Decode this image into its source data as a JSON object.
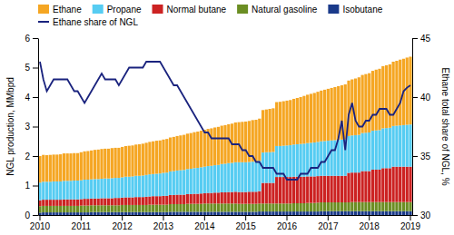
{
  "chart_data": {
    "type": "bar",
    "stacked": true,
    "ylabel": "NGL production, MMbpd",
    "y2label": "Ethane total share of NGL, %",
    "categories": [
      "2010",
      null,
      null,
      null,
      null,
      null,
      null,
      null,
      null,
      null,
      null,
      null,
      "2011",
      null,
      null,
      null,
      null,
      null,
      null,
      null,
      null,
      null,
      null,
      null,
      "2012",
      null,
      null,
      null,
      null,
      null,
      null,
      null,
      null,
      null,
      null,
      null,
      "2013",
      null,
      null,
      null,
      null,
      null,
      null,
      null,
      null,
      null,
      null,
      null,
      "2014",
      null,
      null,
      null,
      null,
      null,
      null,
      null,
      null,
      null,
      null,
      null,
      "2015",
      null,
      null,
      null,
      null,
      null,
      null,
      null,
      null,
      null,
      null,
      null,
      "2016",
      null,
      null,
      null,
      null,
      null,
      null,
      null,
      null,
      null,
      null,
      null,
      "2017",
      null,
      null,
      null,
      null,
      null,
      null,
      null,
      null,
      null,
      null,
      null,
      "2018",
      null,
      null,
      null,
      null,
      null,
      null,
      null,
      null,
      null,
      null,
      null,
      "2019"
    ],
    "series": [
      {
        "name": "Isobutane",
        "color": "#1A3A8A",
        "values": [
          0.08,
          0.09,
          0.09,
          0.09,
          0.09,
          0.09,
          0.09,
          0.09,
          0.09,
          0.09,
          0.09,
          0.09,
          0.09,
          0.09,
          0.09,
          0.1,
          0.1,
          0.1,
          0.1,
          0.1,
          0.1,
          0.1,
          0.1,
          0.1,
          0.1,
          0.1,
          0.1,
          0.1,
          0.1,
          0.1,
          0.1,
          0.1,
          0.1,
          0.1,
          0.1,
          0.1,
          0.1,
          0.1,
          0.11,
          0.11,
          0.11,
          0.11,
          0.11,
          0.11,
          0.11,
          0.11,
          0.11,
          0.11,
          0.11,
          0.11,
          0.11,
          0.11,
          0.11,
          0.11,
          0.11,
          0.11,
          0.11,
          0.11,
          0.11,
          0.11,
          0.11,
          0.11,
          0.11,
          0.11,
          0.12,
          0.12,
          0.12,
          0.12,
          0.12,
          0.12,
          0.12,
          0.12,
          0.12,
          0.12,
          0.12,
          0.12,
          0.12,
          0.12,
          0.12,
          0.12,
          0.12,
          0.12,
          0.13,
          0.13,
          0.13,
          0.13,
          0.13,
          0.13,
          0.13,
          0.13,
          0.13,
          0.13,
          0.13,
          0.13,
          0.13,
          0.13,
          0.13,
          0.13,
          0.13,
          0.13,
          0.13,
          0.13,
          0.13,
          0.13,
          0.13,
          0.13,
          0.13,
          0.13,
          0.13
        ]
      },
      {
        "name": "Natural gasoline",
        "color": "#6B8E23",
        "values": [
          0.22,
          0.22,
          0.22,
          0.22,
          0.22,
          0.22,
          0.22,
          0.22,
          0.22,
          0.22,
          0.22,
          0.22,
          0.23,
          0.23,
          0.23,
          0.23,
          0.23,
          0.23,
          0.23,
          0.23,
          0.23,
          0.23,
          0.23,
          0.23,
          0.24,
          0.24,
          0.24,
          0.24,
          0.24,
          0.24,
          0.24,
          0.24,
          0.25,
          0.25,
          0.25,
          0.25,
          0.25,
          0.25,
          0.26,
          0.26,
          0.26,
          0.26,
          0.26,
          0.27,
          0.27,
          0.27,
          0.27,
          0.27,
          0.28,
          0.28,
          0.28,
          0.28,
          0.28,
          0.28,
          0.28,
          0.28,
          0.28,
          0.28,
          0.27,
          0.27,
          0.27,
          0.27,
          0.27,
          0.27,
          0.27,
          0.27,
          0.27,
          0.27,
          0.27,
          0.27,
          0.27,
          0.27,
          0.27,
          0.27,
          0.28,
          0.28,
          0.28,
          0.28,
          0.29,
          0.29,
          0.29,
          0.3,
          0.3,
          0.3,
          0.3,
          0.3,
          0.3,
          0.3,
          0.3,
          0.3,
          0.3,
          0.31,
          0.31,
          0.31,
          0.31,
          0.31,
          0.31,
          0.31,
          0.31,
          0.31,
          0.31,
          0.31,
          0.31,
          0.31,
          0.31,
          0.31,
          0.31,
          0.31,
          0.31
        ]
      },
      {
        "name": "Normal butane",
        "color": "#CC2222",
        "values": [
          0.2,
          0.21,
          0.21,
          0.21,
          0.21,
          0.21,
          0.21,
          0.22,
          0.22,
          0.22,
          0.22,
          0.22,
          0.22,
          0.23,
          0.23,
          0.23,
          0.23,
          0.23,
          0.24,
          0.24,
          0.24,
          0.24,
          0.25,
          0.25,
          0.25,
          0.26,
          0.26,
          0.26,
          0.27,
          0.27,
          0.27,
          0.28,
          0.28,
          0.29,
          0.29,
          0.29,
          0.3,
          0.3,
          0.31,
          0.31,
          0.32,
          0.32,
          0.32,
          0.33,
          0.33,
          0.34,
          0.34,
          0.35,
          0.35,
          0.36,
          0.36,
          0.37,
          0.37,
          0.38,
          0.38,
          0.39,
          0.39,
          0.4,
          0.4,
          0.4,
          0.4,
          0.41,
          0.41,
          0.41,
          0.42,
          0.7,
          0.7,
          0.7,
          0.7,
          0.9,
          0.9,
          0.9,
          0.9,
          0.9,
          0.9,
          0.9,
          0.9,
          0.9,
          0.9,
          0.9,
          0.9,
          0.9,
          0.9,
          0.9,
          0.9,
          0.9,
          0.9,
          0.9,
          0.9,
          0.9,
          1.0,
          1.0,
          1.0,
          1.0,
          1.05,
          1.05,
          1.05,
          1.1,
          1.1,
          1.1,
          1.15,
          1.15,
          1.15,
          1.2,
          1.2,
          1.2,
          1.2,
          1.2,
          1.2
        ]
      },
      {
        "name": "Propane",
        "color": "#56CCF2",
        "values": [
          0.6,
          0.61,
          0.61,
          0.61,
          0.62,
          0.62,
          0.62,
          0.63,
          0.63,
          0.63,
          0.64,
          0.64,
          0.64,
          0.65,
          0.65,
          0.65,
          0.66,
          0.66,
          0.66,
          0.67,
          0.67,
          0.68,
          0.68,
          0.68,
          0.69,
          0.7,
          0.7,
          0.71,
          0.72,
          0.72,
          0.73,
          0.74,
          0.75,
          0.75,
          0.76,
          0.77,
          0.78,
          0.79,
          0.8,
          0.81,
          0.82,
          0.83,
          0.84,
          0.85,
          0.86,
          0.87,
          0.88,
          0.89,
          0.9,
          0.91,
          0.92,
          0.93,
          0.94,
          0.96,
          0.97,
          0.98,
          0.99,
          1.0,
          1.01,
          1.01,
          1.01,
          1.01,
          1.02,
          1.02,
          1.03,
          1.03,
          1.04,
          1.04,
          1.05,
          1.05,
          1.05,
          1.06,
          1.07,
          1.08,
          1.09,
          1.1,
          1.11,
          1.12,
          1.13,
          1.14,
          1.15,
          1.16,
          1.17,
          1.18,
          1.19,
          1.2,
          1.21,
          1.22,
          1.23,
          1.24,
          1.25,
          1.26,
          1.27,
          1.28,
          1.29,
          1.3,
          1.31,
          1.32,
          1.33,
          1.34,
          1.35,
          1.36,
          1.37,
          1.38,
          1.39,
          1.4,
          1.41,
          1.42,
          1.43
        ]
      },
      {
        "name": "Ethane",
        "color": "#F5A623",
        "values": [
          0.9,
          0.91,
          0.9,
          0.91,
          0.91,
          0.91,
          0.92,
          0.93,
          0.93,
          0.93,
          0.93,
          0.93,
          0.95,
          0.96,
          0.97,
          0.98,
          0.99,
          1.0,
          1.01,
          1.01,
          1.01,
          1.02,
          1.02,
          1.02,
          1.03,
          1.04,
          1.05,
          1.05,
          1.06,
          1.07,
          1.08,
          1.09,
          1.1,
          1.11,
          1.12,
          1.12,
          1.13,
          1.14,
          1.15,
          1.16,
          1.17,
          1.18,
          1.19,
          1.2,
          1.21,
          1.22,
          1.23,
          1.24,
          1.25,
          1.26,
          1.27,
          1.28,
          1.29,
          1.3,
          1.31,
          1.32,
          1.33,
          1.35,
          1.36,
          1.37,
          1.38,
          1.39,
          1.41,
          1.42,
          1.43,
          1.44,
          1.45,
          1.47,
          1.48,
          1.49,
          1.5,
          1.51,
          1.52,
          1.53,
          1.55,
          1.57,
          1.59,
          1.62,
          1.64,
          1.66,
          1.68,
          1.7,
          1.72,
          1.74,
          1.76,
          1.78,
          1.8,
          1.82,
          1.84,
          1.86,
          1.88,
          1.9,
          1.92,
          1.95,
          1.97,
          1.99,
          2.01,
          2.03,
          2.06,
          2.08,
          2.11,
          2.13,
          2.15,
          2.18,
          2.2,
          2.23,
          2.25,
          2.28,
          2.3
        ]
      },
      {
        "name": "Ethane share of NGL",
        "type": "line",
        "axis": "y2",
        "color": "#1A237E",
        "values": [
          43.0,
          41.5,
          40.5,
          41.0,
          41.5,
          41.5,
          41.5,
          41.5,
          41.5,
          41.0,
          40.5,
          40.5,
          40.0,
          39.5,
          40.0,
          40.5,
          41.0,
          41.5,
          42.0,
          41.5,
          41.5,
          41.5,
          41.5,
          41.0,
          41.5,
          42.0,
          42.5,
          42.5,
          42.5,
          42.5,
          42.5,
          43.0,
          43.0,
          43.0,
          43.0,
          43.0,
          42.5,
          42.0,
          41.5,
          41.0,
          41.0,
          40.5,
          40.0,
          39.5,
          39.0,
          38.5,
          38.0,
          37.5,
          37.0,
          37.0,
          36.5,
          36.5,
          36.5,
          36.5,
          36.5,
          36.5,
          36.0,
          36.0,
          36.0,
          35.5,
          35.5,
          35.0,
          35.0,
          34.5,
          34.5,
          34.0,
          34.0,
          34.0,
          34.0,
          33.5,
          33.5,
          33.5,
          33.0,
          33.0,
          33.0,
          33.0,
          33.5,
          33.5,
          33.5,
          34.0,
          34.0,
          34.0,
          34.5,
          34.5,
          35.0,
          35.5,
          35.5,
          36.5,
          38.0,
          35.5,
          38.5,
          39.5,
          38.0,
          37.5,
          37.5,
          38.0,
          38.0,
          38.5,
          38.5,
          39.0,
          39.0,
          39.0,
          38.5,
          38.5,
          39.0,
          39.5,
          40.5,
          40.8,
          41.0
        ]
      }
    ],
    "ylim": [
      0,
      6
    ],
    "yticks": [
      0,
      1,
      2,
      3,
      4,
      5,
      6
    ],
    "y2lim": [
      30,
      45
    ],
    "y2ticks": [
      30,
      35,
      40,
      45
    ],
    "grid": false,
    "legend": "top"
  }
}
